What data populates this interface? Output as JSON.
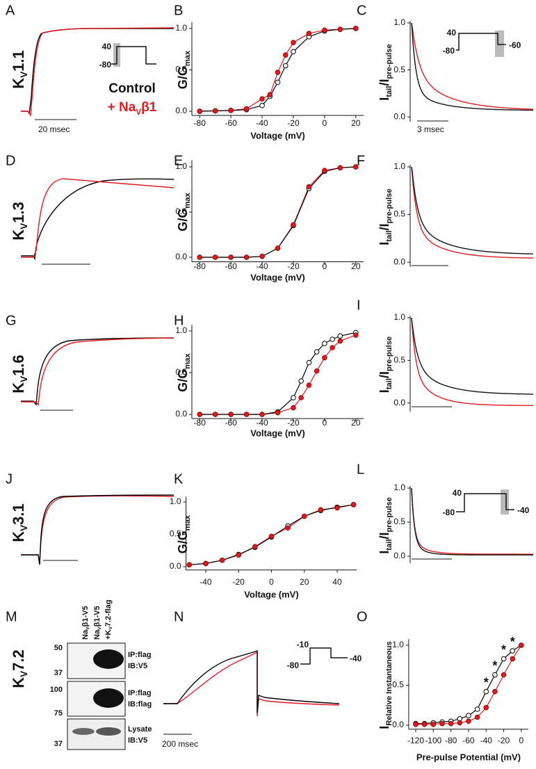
{
  "figure": {
    "panels": {
      "A": "A",
      "D": "D",
      "G": "G",
      "J": "J",
      "M": "M",
      "N": "N"
    },
    "row_labels": [
      [
        {
          "text": "K"
        },
        {
          "text": "V",
          "sub": true
        },
        {
          "text": "1.1"
        }
      ],
      [
        {
          "text": "K"
        },
        {
          "text": "V",
          "sub": true
        },
        {
          "text": "1.3"
        }
      ],
      [
        {
          "text": "K"
        },
        {
          "text": "V",
          "sub": true
        },
        {
          "text": "1.6"
        }
      ],
      [
        {
          "text": "K"
        },
        {
          "text": "V",
          "sub": true
        },
        {
          "text": "3.1"
        }
      ],
      [
        {
          "text": "K"
        },
        {
          "text": "V",
          "sub": true
        },
        {
          "text": "7.2"
        }
      ]
    ],
    "legend": [
      [
        {
          "text": "Control"
        }
      ],
      [
        {
          "text": "+ Na"
        },
        {
          "text": "V",
          "sub": true
        },
        {
          "text": "β1"
        }
      ]
    ],
    "scale_bars": {
      "A": "20 msec",
      "C": "3 msec",
      "N": "200 msec"
    },
    "protocols": {
      "A": [
        "40",
        "-80"
      ],
      "C": [
        "40",
        "-80",
        "-60"
      ],
      "L": [
        "40",
        "-80",
        "-40"
      ],
      "N": [
        "-10",
        "-80",
        "-40"
      ]
    },
    "blot": {
      "lanes": [
        [
          [
            {
              "text": "Na"
            },
            {
              "text": "V",
              "sub": true
            },
            {
              "text": "β1-V5"
            }
          ]
        ],
        [
          [
            {
              "text": "Na"
            },
            {
              "text": "V",
              "sub": true
            },
            {
              "text": "β1-V5"
            }
          ],
          [
            {
              "text": "+K"
            },
            {
              "text": "V",
              "sub": true
            },
            {
              "text": "7.2-flag"
            }
          ]
        ]
      ],
      "rows": [
        {
          "markers": [
            50,
            37
          ],
          "labels": [
            "IP:flag",
            "IB:V5"
          ]
        },
        {
          "markers": [
            100,
            75
          ],
          "labels": [
            "IP:flag",
            "IB:flag"
          ]
        },
        {
          "markers": [
            37
          ],
          "labels": [
            "Lysate",
            "IB:V5"
          ]
        }
      ]
    }
  },
  "chart_data": [
    {
      "panel": "B",
      "type": "line",
      "xlabel": "Voltage (mV)",
      "ylabel": [
        {
          "text": "G/G"
        },
        {
          "text": "max",
          "sub": true
        }
      ],
      "x": [
        -80,
        -70,
        -60,
        -50,
        -40,
        -35,
        -30,
        -25,
        -20,
        -10,
        0,
        10,
        20
      ],
      "series": [
        {
          "color": "#000000",
          "marker": "open",
          "values": [
            0,
            0.005,
            0.01,
            0.02,
            0.07,
            0.18,
            0.35,
            0.55,
            0.72,
            0.9,
            0.97,
            0.99,
            1.0
          ]
        },
        {
          "color": "#e4191e",
          "marker": "filled",
          "values": [
            0,
            0.005,
            0.01,
            0.03,
            0.15,
            0.2,
            0.47,
            0.68,
            0.83,
            0.94,
            0.98,
            0.99,
            1.0
          ]
        }
      ],
      "xlim": [
        -85,
        25
      ],
      "ylim": [
        -0.05,
        1.05
      ],
      "xticks": [
        -80,
        -60,
        -40,
        -20,
        0,
        20
      ],
      "yticks": [
        {
          "value": 0,
          "label": "0.0"
        },
        {
          "value": 0.5,
          "label": "0.5"
        },
        {
          "value": 1,
          "label": "1.0"
        }
      ]
    },
    {
      "panel": "C",
      "type": "decay",
      "ylabel": [
        {
          "text": "I"
        },
        {
          "text": "tail",
          "sub": true
        },
        {
          "text": "/I"
        },
        {
          "text": "pre-pulse",
          "sub": true
        }
      ],
      "ylim": [
        -0.05,
        1.0
      ],
      "yticks": [
        {
          "value": 0,
          "label": "0.0"
        },
        {
          "value": 0.5,
          "label": "0.5"
        },
        {
          "value": 1,
          "label": "1.0"
        }
      ]
    },
    {
      "panel": "E",
      "type": "line",
      "xlabel": "Voltage (mV)",
      "ylabel": [
        {
          "text": "G/G"
        },
        {
          "text": "max",
          "sub": true
        }
      ],
      "x": [
        -80,
        -70,
        -60,
        -50,
        -40,
        -30,
        -20,
        -10,
        0,
        10,
        20
      ],
      "series": [
        {
          "color": "#000000",
          "marker": "open",
          "values": [
            0,
            0,
            0,
            0,
            0.01,
            0.1,
            0.35,
            0.76,
            0.95,
            0.99,
            1.0
          ]
        },
        {
          "color": "#e4191e",
          "marker": "filled",
          "values": [
            0,
            0,
            0,
            0,
            0.01,
            0.1,
            0.36,
            0.78,
            0.96,
            0.99,
            1.0
          ]
        }
      ],
      "xlim": [
        -85,
        25
      ],
      "ylim": [
        -0.05,
        1.05
      ],
      "xticks": [
        -80,
        -60,
        -40,
        -20,
        0,
        20
      ],
      "yticks": [
        {
          "value": 0,
          "label": "0.0"
        },
        {
          "value": 0.5,
          "label": "0.5"
        },
        {
          "value": 1,
          "label": "1.0"
        }
      ]
    },
    {
      "panel": "F",
      "type": "decay",
      "ylabel": [
        {
          "text": "I"
        },
        {
          "text": "tail",
          "sub": true
        },
        {
          "text": "/I"
        },
        {
          "text": "pre-pulse",
          "sub": true
        }
      ],
      "ylim": [
        -0.05,
        1.0
      ],
      "yticks": [
        {
          "value": 0,
          "label": "0.0"
        },
        {
          "value": 0.5,
          "label": "0.5"
        },
        {
          "value": 1,
          "label": "1.0"
        }
      ]
    },
    {
      "panel": "H",
      "type": "line",
      "xlabel": "Voltage (mV)",
      "ylabel": [
        {
          "text": "G/G"
        },
        {
          "text": "max",
          "sub": true
        }
      ],
      "x": [
        -80,
        -70,
        -60,
        -50,
        -40,
        -30,
        -20,
        -15,
        -10,
        -5,
        0,
        5,
        10,
        20
      ],
      "series": [
        {
          "color": "#000000",
          "marker": "open",
          "values": [
            0,
            0,
            0,
            0,
            0,
            0.03,
            0.2,
            0.4,
            0.62,
            0.75,
            0.85,
            0.9,
            0.94,
            0.98
          ]
        },
        {
          "color": "#e4191e",
          "marker": "filled",
          "values": [
            0,
            0,
            0,
            0,
            0,
            0.02,
            0.08,
            0.2,
            0.35,
            0.52,
            0.68,
            0.8,
            0.88,
            0.95
          ]
        }
      ],
      "xlim": [
        -85,
        25
      ],
      "ylim": [
        -0.05,
        1.05
      ],
      "xticks": [
        -80,
        -60,
        -40,
        -20,
        0,
        20
      ],
      "yticks": [
        {
          "value": 0,
          "label": "0.0"
        },
        {
          "value": 0.5,
          "label": "0.5"
        },
        {
          "value": 1,
          "label": "1.0"
        }
      ]
    },
    {
      "panel": "I",
      "type": "decay",
      "ylabel": [
        {
          "text": "I"
        },
        {
          "text": "tail",
          "sub": true
        },
        {
          "text": "/I"
        },
        {
          "text": "pre-pulse",
          "sub": true
        }
      ],
      "ylim": [
        -0.1,
        1.0
      ],
      "yticks": [
        {
          "value": 0,
          "label": "0.0"
        },
        {
          "value": 0.5,
          "label": "0.5"
        },
        {
          "value": 1,
          "label": "1.0"
        }
      ]
    },
    {
      "panel": "K",
      "type": "line",
      "xlabel": "Voltage (mV)",
      "ylabel": [
        {
          "text": "G/G"
        },
        {
          "text": "max",
          "sub": true
        }
      ],
      "x": [
        -50,
        -40,
        -30,
        -20,
        -10,
        0,
        10,
        20,
        30,
        40,
        50
      ],
      "series": [
        {
          "color": "#000000",
          "marker": "open",
          "values": [
            0.03,
            0.05,
            0.1,
            0.19,
            0.3,
            0.46,
            0.63,
            0.78,
            0.87,
            0.92,
            0.96
          ]
        },
        {
          "color": "#e4191e",
          "marker": "filled",
          "values": [
            0.03,
            0.05,
            0.1,
            0.18,
            0.31,
            0.47,
            0.6,
            0.78,
            0.88,
            0.91,
            0.96
          ]
        }
      ],
      "xlim": [
        -52,
        52
      ],
      "ylim": [
        -0.05,
        1.05
      ],
      "xticks": [
        -40,
        -20,
        0,
        20,
        40
      ],
      "yticks": [
        {
          "value": 0,
          "label": "0.0"
        },
        {
          "value": 0.5,
          "label": "0.5"
        },
        {
          "value": 1,
          "label": "1.0"
        }
      ]
    },
    {
      "panel": "L",
      "type": "decay",
      "ylabel": [
        {
          "text": "I"
        },
        {
          "text": "tail",
          "sub": true
        },
        {
          "text": "/I"
        },
        {
          "text": "pre-pulse",
          "sub": true
        }
      ],
      "ylim": [
        -0.1,
        1.0
      ],
      "yticks": [
        {
          "value": 0,
          "label": "0.0"
        },
        {
          "value": 0.5,
          "label": "0.5"
        },
        {
          "value": 1,
          "label": "1.0"
        }
      ]
    },
    {
      "panel": "O",
      "type": "line",
      "xlabel": "Pre-pulse Potential (mV)",
      "ylabel": [
        {
          "text": "I"
        },
        {
          "text": "Relative Instantaneous",
          "sub": true
        }
      ],
      "x": [
        -120,
        -110,
        -100,
        -90,
        -80,
        -70,
        -60,
        -50,
        -40,
        -30,
        -20,
        -10,
        0
      ],
      "series": [
        {
          "color": "#000000",
          "marker": "open",
          "values": [
            0.02,
            0.02,
            0.03,
            0.04,
            0.05,
            0.08,
            0.12,
            0.2,
            0.42,
            0.63,
            0.83,
            0.93,
            1.0
          ]
        },
        {
          "color": "#e4191e",
          "marker": "filled",
          "values": [
            0.01,
            0.01,
            0.01,
            0.02,
            0.02,
            0.03,
            0.05,
            0.1,
            0.22,
            0.42,
            0.63,
            0.83,
            1.0
          ]
        }
      ],
      "annotations": [
        {
          "text": "*",
          "x": -40
        },
        {
          "text": "*",
          "x": -30
        },
        {
          "text": "*",
          "x": -20
        },
        {
          "text": "*",
          "x": -10
        }
      ],
      "xlim": [
        -128,
        8
      ],
      "ylim": [
        -0.05,
        1.05
      ],
      "xticks": [
        -120,
        -100,
        -80,
        -60,
        -40,
        -20,
        0
      ],
      "yticks": [
        {
          "value": 0,
          "label": "0.0"
        },
        {
          "value": 0.5,
          "label": "0.5"
        },
        {
          "value": 1,
          "label": "1.0"
        }
      ]
    }
  ]
}
